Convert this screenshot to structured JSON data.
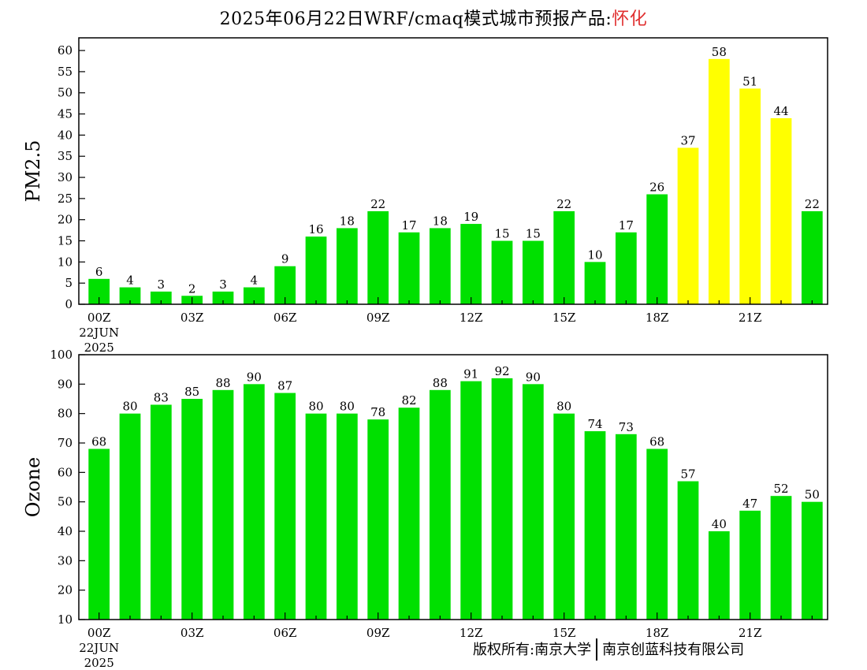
{
  "title": {
    "prefix": "2025年06月22日WRF/cmaq模式城市预报产品:",
    "city": "怀化"
  },
  "footer": {
    "left": "版权所有:南京大学",
    "right": "南京创蓝科技有限公司"
  },
  "colors": {
    "green": "#00e000",
    "yellow": "#ffff00",
    "title_city": "#e03030"
  },
  "chart_data": [
    {
      "type": "bar",
      "ylabel": "PM2.5",
      "ylim": [
        0,
        63
      ],
      "yticks": [
        0,
        5,
        10,
        15,
        20,
        25,
        30,
        35,
        40,
        45,
        50,
        55,
        60
      ],
      "xtick_labels": [
        {
          "index": 0,
          "lines": [
            "00Z",
            "22JUN",
            "2025"
          ]
        },
        {
          "index": 3,
          "lines": [
            "03Z"
          ]
        },
        {
          "index": 6,
          "lines": [
            "06Z"
          ]
        },
        {
          "index": 9,
          "lines": [
            "09Z"
          ]
        },
        {
          "index": 12,
          "lines": [
            "12Z"
          ]
        },
        {
          "index": 15,
          "lines": [
            "15Z"
          ]
        },
        {
          "index": 18,
          "lines": [
            "18Z"
          ]
        },
        {
          "index": 21,
          "lines": [
            "21Z"
          ]
        }
      ],
      "values": [
        6,
        4,
        3,
        2,
        3,
        4,
        9,
        16,
        18,
        22,
        17,
        18,
        19,
        15,
        15,
        22,
        10,
        17,
        26,
        37,
        58,
        51,
        44,
        22
      ],
      "bar_colors": [
        "green",
        "green",
        "green",
        "green",
        "green",
        "green",
        "green",
        "green",
        "green",
        "green",
        "green",
        "green",
        "green",
        "green",
        "green",
        "green",
        "green",
        "green",
        "green",
        "yellow",
        "yellow",
        "yellow",
        "yellow",
        "green"
      ]
    },
    {
      "type": "bar",
      "ylabel": "Ozone",
      "ylim": [
        10,
        100
      ],
      "yticks": [
        10,
        20,
        30,
        40,
        50,
        60,
        70,
        80,
        90,
        100
      ],
      "xtick_labels": [
        {
          "index": 0,
          "lines": [
            "00Z",
            "22JUN",
            "2025"
          ]
        },
        {
          "index": 3,
          "lines": [
            "03Z"
          ]
        },
        {
          "index": 6,
          "lines": [
            "06Z"
          ]
        },
        {
          "index": 9,
          "lines": [
            "09Z"
          ]
        },
        {
          "index": 12,
          "lines": [
            "12Z"
          ]
        },
        {
          "index": 15,
          "lines": [
            "15Z"
          ]
        },
        {
          "index": 18,
          "lines": [
            "18Z"
          ]
        },
        {
          "index": 21,
          "lines": [
            "21Z"
          ]
        }
      ],
      "values": [
        68,
        80,
        83,
        85,
        88,
        90,
        87,
        80,
        80,
        78,
        82,
        88,
        91,
        92,
        90,
        80,
        74,
        73,
        68,
        57,
        40,
        47,
        52,
        50
      ],
      "bar_colors": [
        "green",
        "green",
        "green",
        "green",
        "green",
        "green",
        "green",
        "green",
        "green",
        "green",
        "green",
        "green",
        "green",
        "green",
        "green",
        "green",
        "green",
        "green",
        "green",
        "green",
        "green",
        "green",
        "green",
        "green"
      ]
    }
  ]
}
